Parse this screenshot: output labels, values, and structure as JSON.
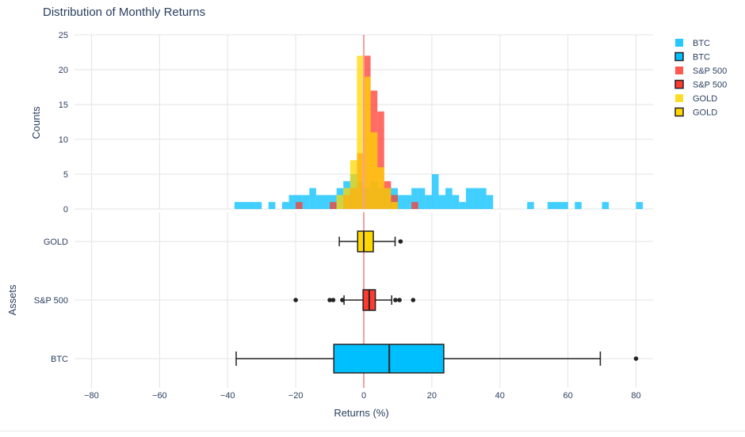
{
  "chart_data": {
    "type": "bar",
    "title": "Distribution of Monthly Returns",
    "xlabel": "Returns (%)",
    "xlim": [
      -85,
      85
    ],
    "x_ticks": [
      -80,
      -60,
      -40,
      -20,
      0,
      20,
      40,
      60,
      80
    ],
    "vline_x": 0,
    "histogram": {
      "ylabel": "Counts",
      "ylim": [
        0,
        25
      ],
      "y_ticks": [
        0,
        5,
        10,
        15,
        20,
        25
      ],
      "bin_width": 2,
      "overlay": true,
      "series": [
        {
          "name": "BTC",
          "color": "#00bfff",
          "bins": [
            [
              -38,
              1
            ],
            [
              -36,
              1
            ],
            [
              -34,
              1
            ],
            [
              -32,
              1
            ],
            [
              -28,
              1
            ],
            [
              -24,
              1
            ],
            [
              -22,
              2
            ],
            [
              -20,
              2
            ],
            [
              -18,
              2
            ],
            [
              -16,
              3
            ],
            [
              -14,
              2
            ],
            [
              -12,
              2
            ],
            [
              -10,
              2
            ],
            [
              -8,
              3
            ],
            [
              -6,
              4
            ],
            [
              -4,
              5
            ],
            [
              -2,
              4
            ],
            [
              0,
              3
            ],
            [
              2,
              4
            ],
            [
              4,
              3
            ],
            [
              6,
              3
            ],
            [
              8,
              3
            ],
            [
              10,
              2
            ],
            [
              12,
              2
            ],
            [
              14,
              3
            ],
            [
              16,
              3
            ],
            [
              18,
              2
            ],
            [
              20,
              5
            ],
            [
              22,
              2
            ],
            [
              24,
              3
            ],
            [
              26,
              2
            ],
            [
              28,
              1
            ],
            [
              30,
              3
            ],
            [
              32,
              3
            ],
            [
              34,
              3
            ],
            [
              36,
              2
            ],
            [
              48,
              1
            ],
            [
              54,
              1
            ],
            [
              56,
              1
            ],
            [
              58,
              1
            ],
            [
              62,
              1
            ],
            [
              70,
              1
            ],
            [
              80,
              1
            ]
          ]
        },
        {
          "name": "S&P 500",
          "color": "#ff3b30",
          "bins": [
            [
              -20,
              1
            ],
            [
              -10,
              1
            ],
            [
              -6,
              2
            ],
            [
              -4,
              3
            ],
            [
              -2,
              8
            ],
            [
              0,
              22
            ],
            [
              2,
              17
            ],
            [
              4,
              14
            ],
            [
              6,
              4
            ],
            [
              8,
              2
            ],
            [
              14,
              1
            ]
          ]
        },
        {
          "name": "GOLD",
          "color": "#ffd700",
          "bins": [
            [
              -8,
              2
            ],
            [
              -6,
              3
            ],
            [
              -4,
              7
            ],
            [
              -2,
              22
            ],
            [
              0,
              19
            ],
            [
              2,
              11
            ],
            [
              4,
              6
            ],
            [
              6,
              3
            ],
            [
              8,
              1
            ]
          ]
        }
      ]
    },
    "boxplot": {
      "ylabel": "Assets",
      "categories": [
        "GOLD",
        "S&P 500",
        "BTC"
      ],
      "series": [
        {
          "name": "GOLD",
          "color": "#ffd700",
          "min": -7.2,
          "q1": -1.8,
          "median": 0,
          "q3": 2.8,
          "max": 9.2,
          "outliers": [
            10.8
          ]
        },
        {
          "name": "S&P 500",
          "color": "#ff3b30",
          "min": -5.8,
          "q1": -0.2,
          "median": 1.6,
          "q3": 3.4,
          "max": 8.2,
          "outliers": [
            -20,
            -10,
            -9,
            -6.3,
            9.3,
            10.5,
            14.5
          ]
        },
        {
          "name": "BTC",
          "color": "#00bfff",
          "min": -37.5,
          "q1": -8.8,
          "median": 7.5,
          "q3": 23.5,
          "max": 69.5,
          "outliers": [
            80
          ]
        }
      ]
    },
    "legend": {
      "placement": "top-right",
      "entries": [
        {
          "label": "BTC",
          "style": "filled",
          "color": "#00bfff"
        },
        {
          "label": "BTC",
          "style": "outlined",
          "color": "#00bfff"
        },
        {
          "label": "S&P 500",
          "style": "filled",
          "color": "#ff3b30"
        },
        {
          "label": "S&P 500",
          "style": "outlined",
          "color": "#ff3b30"
        },
        {
          "label": "GOLD",
          "style": "filled",
          "color": "#ffd700"
        },
        {
          "label": "GOLD",
          "style": "outlined",
          "color": "#ffd700"
        }
      ]
    },
    "grid": true
  }
}
